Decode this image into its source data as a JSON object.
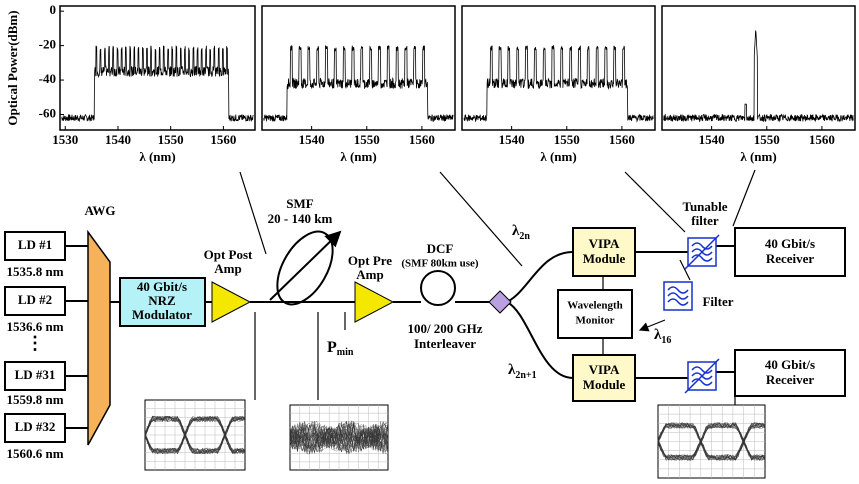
{
  "plots": [
    {
      "xlim": [
        1529,
        1566
      ],
      "xticks": [
        1530,
        1540,
        1550,
        1560
      ],
      "ylim": [
        -69,
        3
      ],
      "yticks": [
        0,
        -20,
        -40,
        -60
      ]
    },
    {
      "xlim": [
        1531,
        1566
      ],
      "xticks": [
        1540,
        1550,
        1560
      ],
      "ylim": [
        -69,
        3
      ],
      "yticks": [
        0,
        -20,
        -40,
        -60
      ]
    },
    {
      "xlim": [
        1531,
        1566
      ],
      "xticks": [
        1540,
        1550,
        1560
      ],
      "ylim": [
        -69,
        3
      ],
      "yticks": [
        0,
        -20,
        -40,
        -60
      ]
    },
    {
      "xlim": [
        1531,
        1566
      ],
      "xticks": [
        1540,
        1550,
        1560
      ],
      "ylim": [
        -69,
        3
      ],
      "yticks": [
        0,
        -20,
        -40,
        -60
      ]
    }
  ],
  "y_axis_label": "Optical Power(dBm)",
  "x_axis_label": "λ (nm)",
  "lasers": [
    {
      "label": "LD #1",
      "wavelength": "1535.8 nm"
    },
    {
      "label": "LD #2",
      "wavelength": "1536.6 nm"
    },
    {
      "label": "LD #31",
      "wavelength": "1559.8 nm"
    },
    {
      "label": "LD #32",
      "wavelength": "1560.6 nm"
    }
  ],
  "ellipsis": "⋮",
  "awg": "AWG",
  "modulator": [
    "40 Gbit/s",
    "NRZ",
    "Modulator"
  ],
  "post_amp": [
    "Opt Post",
    "Amp"
  ],
  "smf": [
    "SMF",
    "20 - 140 km"
  ],
  "pre_amp": [
    "Opt Pre",
    "Amp"
  ],
  "dcf": "DCF",
  "dcf_note": "(SMF 80km use)",
  "pmin": {
    "symbol": "P",
    "sub": "min"
  },
  "interleaver": [
    "100/ 200 GHz",
    "Interleaver"
  ],
  "lambda_2n": {
    "symbol": "λ",
    "sub": "2n"
  },
  "lambda_2n1": {
    "symbol": "λ",
    "sub": "2n+1"
  },
  "lambda_16": {
    "symbol": "λ",
    "sub": "16"
  },
  "vipa": [
    "VIPA",
    "Module"
  ],
  "monitor": [
    "Wavelength",
    "Monitor"
  ],
  "tunable_filter": [
    "Tunable",
    "filter"
  ],
  "filter": "Filter",
  "receiver": [
    "40 Gbit/s",
    "Receiver"
  ]
}
